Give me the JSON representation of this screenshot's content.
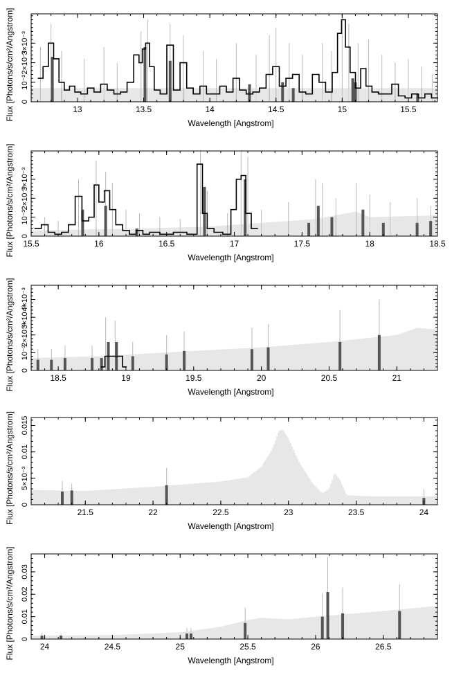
{
  "colors": {
    "data": "#000000",
    "bars": "#555555",
    "errors": "#b8b8b8",
    "model": "#cfcfcf"
  },
  "chart_data": [
    {
      "type": "line",
      "xlabel": "Wavelength [Angstrom]",
      "ylabel": "Flux [Photons/s/cm²/Angstrom]",
      "xlim": [
        12.65,
        15.72
      ],
      "ylim": [
        0,
        0.0045
      ],
      "xticks": [
        13,
        13.5,
        14,
        14.5,
        15,
        15.5
      ],
      "xtick_labels": [
        "13",
        "13.5",
        "14",
        "14.5",
        "15",
        "15.5"
      ],
      "yticks": [
        0,
        0.001,
        0.002,
        0.003
      ],
      "ytick_labels": [
        "0",
        "10⁻³",
        "2×10⁻³",
        "3×10⁻³"
      ],
      "model_level": [
        [
          12.65,
          0.0007
        ],
        [
          15.72,
          0.0007
        ]
      ],
      "x": [
        12.72,
        12.76,
        12.8,
        12.84,
        12.88,
        12.92,
        12.96,
        13.0,
        13.05,
        13.1,
        13.15,
        13.2,
        13.25,
        13.3,
        13.35,
        13.4,
        13.45,
        13.48,
        13.5,
        13.53,
        13.56,
        13.6,
        13.65,
        13.7,
        13.75,
        13.8,
        13.85,
        13.9,
        13.95,
        14.0,
        14.05,
        14.1,
        14.15,
        14.2,
        14.25,
        14.3,
        14.35,
        14.4,
        14.45,
        14.5,
        14.55,
        14.6,
        14.65,
        14.7,
        14.75,
        14.8,
        14.85,
        14.9,
        14.95,
        14.98,
        15.01,
        15.04,
        15.08,
        15.12,
        15.16,
        15.2,
        15.25,
        15.3,
        15.35,
        15.4,
        15.45,
        15.5,
        15.55,
        15.6,
        15.65,
        15.7
      ],
      "y": [
        0.0012,
        0.0018,
        0.003,
        0.0022,
        0.001,
        0.0006,
        0.0008,
        0.0005,
        0.0004,
        0.0007,
        0.0005,
        0.0009,
        0.0006,
        0.0004,
        0.0005,
        0.001,
        0.0024,
        0.002,
        0.0027,
        0.003,
        0.0018,
        0.0006,
        0.0004,
        0.0029,
        0.0006,
        0.002,
        0.0007,
        0.0004,
        0.0008,
        0.0004,
        0.0004,
        0.0008,
        0.0005,
        0.0012,
        0.0006,
        0.0004,
        0.0005,
        0.0007,
        0.0014,
        0.0018,
        0.0008,
        0.0012,
        0.0014,
        0.0005,
        0.0004,
        0.0014,
        0.001,
        0.0005,
        0.0015,
        0.0035,
        0.0042,
        0.0028,
        0.0015,
        0.0007,
        0.0017,
        0.0008,
        0.0005,
        0.0004,
        0.0004,
        0.0009,
        0.0003,
        0.0002,
        0.0004,
        0.0002,
        0.0004,
        0.0002
      ],
      "bars": [
        [
          12.81,
          0.0023
        ],
        [
          13.51,
          0.0028
        ],
        [
          13.7,
          0.0021
        ],
        [
          14.3,
          0.0009
        ],
        [
          14.55,
          0.001
        ],
        [
          14.63,
          0.0007
        ],
        [
          15.08,
          0.0012
        ],
        [
          15.1,
          0.001
        ],
        [
          15.57,
          0.0004
        ]
      ],
      "errors": [
        [
          12.72,
          0.0028
        ],
        [
          12.8,
          0.004
        ],
        [
          12.88,
          0.0026
        ],
        [
          13.05,
          0.0022
        ],
        [
          13.2,
          0.0028
        ],
        [
          13.3,
          0.002
        ],
        [
          13.48,
          0.0036
        ],
        [
          13.53,
          0.0042
        ],
        [
          13.7,
          0.004
        ],
        [
          13.8,
          0.0034
        ],
        [
          13.95,
          0.0026
        ],
        [
          14.05,
          0.0022
        ],
        [
          14.2,
          0.003
        ],
        [
          14.35,
          0.0024
        ],
        [
          14.45,
          0.0034
        ],
        [
          14.5,
          0.0038
        ],
        [
          14.6,
          0.003
        ],
        [
          14.7,
          0.0024
        ],
        [
          14.85,
          0.003
        ],
        [
          14.92,
          0.0026
        ],
        [
          15.0,
          0.0048
        ],
        [
          15.05,
          0.004
        ],
        [
          15.12,
          0.003
        ],
        [
          15.2,
          0.0032
        ],
        [
          15.3,
          0.0024
        ],
        [
          15.4,
          0.002
        ],
        [
          15.5,
          0.0022
        ],
        [
          15.6,
          0.0018
        ],
        [
          15.68,
          0.0014
        ]
      ]
    },
    {
      "type": "line",
      "xlabel": "Wavelength [Angstrom]",
      "ylabel": "Flux [Photons/s/cm²/Angstrom]",
      "xlim": [
        15.5,
        18.5
      ],
      "ylim": [
        0,
        0.0045
      ],
      "xticks": [
        15.5,
        16,
        16.5,
        17,
        17.5,
        18,
        18.5
      ],
      "xtick_labels": [
        "15.5",
        "16",
        "16.5",
        "17",
        "17.5",
        "18",
        "18.5"
      ],
      "yticks": [
        0,
        0.001,
        0.002,
        0.003
      ],
      "ytick_labels": [
        "0",
        "10⁻³",
        "2×10⁻³",
        "3×10⁻³"
      ],
      "model_level": [
        [
          15.5,
          0.0003
        ],
        [
          16.3,
          0.0004
        ],
        [
          16.8,
          0.0005
        ],
        [
          17.2,
          0.0007
        ],
        [
          17.6,
          0.0009
        ],
        [
          17.9,
          0.0013
        ],
        [
          18.0,
          0.001
        ],
        [
          18.5,
          0.0011
        ]
      ],
      "x": [
        15.55,
        15.6,
        15.65,
        15.7,
        15.75,
        15.8,
        15.85,
        15.9,
        15.95,
        15.98,
        16.02,
        16.06,
        16.1,
        16.15,
        16.2,
        16.25,
        16.3,
        16.35,
        16.4,
        16.5,
        16.6,
        16.7,
        16.75,
        16.78,
        16.82,
        16.88,
        16.95,
        17.0,
        17.03,
        17.07,
        17.1,
        17.15
      ],
      "y": [
        0.0004,
        0.0006,
        0.0002,
        0.0001,
        0.0002,
        0.0006,
        0.0021,
        0.0008,
        0.001,
        0.0027,
        0.0018,
        0.0024,
        0.0014,
        0.0006,
        0.0003,
        0.0001,
        0.0003,
        0.0001,
        0.0002,
        0.0001,
        0.0002,
        0.0001,
        0.0038,
        0.0012,
        0.0004,
        0.0002,
        0.0001,
        0.0014,
        0.003,
        0.0032,
        0.0012,
        0.0004
      ],
      "bars": [
        [
          15.88,
          0.0014
        ],
        [
          16.05,
          0.0016
        ],
        [
          16.28,
          0.0004
        ],
        [
          16.78,
          0.0026
        ],
        [
          17.08,
          0.003
        ],
        [
          17.55,
          0.0007
        ],
        [
          17.62,
          0.0016
        ],
        [
          17.72,
          0.001
        ],
        [
          17.95,
          0.0014
        ],
        [
          18.1,
          0.0007
        ],
        [
          18.35,
          0.0007
        ],
        [
          18.45,
          0.0008
        ]
      ],
      "errors": [
        [
          15.6,
          0.001
        ],
        [
          15.7,
          0.0008
        ],
        [
          15.85,
          0.003
        ],
        [
          15.98,
          0.004
        ],
        [
          16.05,
          0.0034
        ],
        [
          16.1,
          0.0028
        ],
        [
          16.2,
          0.0014
        ],
        [
          16.3,
          0.0012
        ],
        [
          16.45,
          0.001
        ],
        [
          16.6,
          0.0009
        ],
        [
          16.75,
          0.005
        ],
        [
          16.8,
          0.0024
        ],
        [
          16.95,
          0.0012
        ],
        [
          17.05,
          0.0048
        ],
        [
          17.1,
          0.0042
        ],
        [
          17.2,
          0.0014
        ],
        [
          17.4,
          0.0018
        ],
        [
          17.6,
          0.003
        ],
        [
          17.65,
          0.0028
        ],
        [
          17.75,
          0.002
        ],
        [
          17.9,
          0.0028
        ],
        [
          18.0,
          0.0022
        ],
        [
          18.15,
          0.0018
        ],
        [
          18.35,
          0.002
        ],
        [
          18.45,
          0.0016
        ]
      ]
    },
    {
      "type": "line",
      "xlabel": "Wavelength [Angstrom]",
      "ylabel": "Flux [Photons/s/cm²/Angstrom]",
      "xlim": [
        18.3,
        21.3
      ],
      "ylim": [
        0,
        0.0048
      ],
      "xticks": [
        18.5,
        19,
        19.5,
        20,
        20.5,
        21
      ],
      "xtick_labels": [
        "18.5",
        "19",
        "19.5",
        "20",
        "20.5",
        "21"
      ],
      "yticks": [
        0,
        0.001,
        0.002,
        0.003,
        0.004
      ],
      "ytick_labels": [
        "0",
        "10⁻³",
        "2×10⁻³",
        "3×10⁻³",
        "4×10⁻³"
      ],
      "model_level": [
        [
          18.3,
          0.0007
        ],
        [
          18.8,
          0.0008
        ],
        [
          19.5,
          0.0011
        ],
        [
          20.0,
          0.0013
        ],
        [
          20.5,
          0.0016
        ],
        [
          21.0,
          0.002
        ],
        [
          21.15,
          0.0024
        ],
        [
          21.3,
          0.0023
        ]
      ],
      "x": [
        18.83,
        18.86,
        18.9,
        18.93,
        18.96,
        18.99
      ],
      "y": [
        0.0002,
        0.0008,
        0.0008,
        0.0008,
        0.0008,
        0.0002
      ],
      "bars": [
        [
          18.35,
          0.0006
        ],
        [
          18.45,
          0.0006
        ],
        [
          18.55,
          0.0007
        ],
        [
          18.75,
          0.0007
        ],
        [
          18.82,
          0.0007
        ],
        [
          18.87,
          0.0016
        ],
        [
          18.93,
          0.0016
        ],
        [
          19.05,
          0.0008
        ],
        [
          19.3,
          0.0009
        ],
        [
          19.43,
          0.0011
        ],
        [
          19.93,
          0.0012
        ],
        [
          20.05,
          0.0013
        ],
        [
          20.58,
          0.0016
        ],
        [
          20.87,
          0.002
        ]
      ],
      "errors": [
        [
          18.35,
          0.0012
        ],
        [
          18.45,
          0.0012
        ],
        [
          18.55,
          0.0014
        ],
        [
          18.75,
          0.0014
        ],
        [
          18.85,
          0.003
        ],
        [
          18.92,
          0.0028
        ],
        [
          19.05,
          0.0016
        ],
        [
          19.3,
          0.002
        ],
        [
          19.43,
          0.0022
        ],
        [
          19.93,
          0.0024
        ],
        [
          20.05,
          0.0026
        ],
        [
          20.58,
          0.0034
        ],
        [
          20.87,
          0.004
        ]
      ]
    },
    {
      "type": "line",
      "xlabel": "Wavelength [Angstrom]",
      "ylabel": "Flux [Photons/s/cm²/Angstrom]",
      "xlim": [
        21.1,
        24.1
      ],
      "ylim": [
        0,
        0.0165
      ],
      "xticks": [
        21.5,
        22,
        22.5,
        23,
        23.5,
        24
      ],
      "xtick_labels": [
        "21.5",
        "22",
        "22.5",
        "23",
        "23.5",
        "24"
      ],
      "yticks": [
        0,
        0.005,
        0.01,
        0.015
      ],
      "ytick_labels": [
        "0",
        "5×10⁻³",
        "0.01",
        "0.015"
      ],
      "model_level": [
        [
          21.1,
          0.0028
        ],
        [
          21.5,
          0.0026
        ],
        [
          22.0,
          0.0034
        ],
        [
          22.5,
          0.0044
        ],
        [
          22.7,
          0.0052
        ],
        [
          22.8,
          0.0072
        ],
        [
          22.88,
          0.0105
        ],
        [
          22.93,
          0.014
        ],
        [
          22.96,
          0.0142
        ],
        [
          23.0,
          0.0125
        ],
        [
          23.08,
          0.008
        ],
        [
          23.18,
          0.004
        ],
        [
          23.25,
          0.0022
        ],
        [
          23.3,
          0.003
        ],
        [
          23.34,
          0.006
        ],
        [
          23.38,
          0.0048
        ],
        [
          23.43,
          0.0018
        ],
        [
          23.6,
          0.0016
        ],
        [
          24.1,
          0.0016
        ]
      ],
      "x": [],
      "y": [],
      "bars": [
        [
          21.33,
          0.0025
        ],
        [
          21.4,
          0.0027
        ],
        [
          22.1,
          0.0037
        ],
        [
          24.0,
          0.0013
        ]
      ],
      "errors": [
        [
          21.33,
          0.0045
        ],
        [
          21.4,
          0.004
        ],
        [
          22.1,
          0.007
        ],
        [
          24.0,
          0.003
        ]
      ]
    },
    {
      "type": "line",
      "xlabel": "Wavelength [Angstrom]",
      "ylabel": "Flux [Photons/s/cm²/Angstrom]",
      "xlim": [
        23.9,
        26.9
      ],
      "ylim": [
        0,
        0.038
      ],
      "xticks": [
        24,
        24.5,
        25,
        25.5,
        26,
        26.5
      ],
      "xtick_labels": [
        "24",
        "24.5",
        "25",
        "25.5",
        "26",
        "26.5"
      ],
      "yticks": [
        0,
        0.01,
        0.02,
        0.03
      ],
      "ytick_labels": [
        "0",
        "0.01",
        "0.02",
        "0.03"
      ],
      "model_level": [
        [
          23.9,
          0.0015
        ],
        [
          24.5,
          0.0018
        ],
        [
          25.0,
          0.003
        ],
        [
          25.3,
          0.0055
        ],
        [
          25.5,
          0.0085
        ],
        [
          25.6,
          0.0095
        ],
        [
          25.8,
          0.0088
        ],
        [
          26.0,
          0.01
        ],
        [
          26.3,
          0.0115
        ],
        [
          26.5,
          0.0125
        ],
        [
          26.9,
          0.0148
        ]
      ],
      "x": [],
      "y": [],
      "bars": [
        [
          23.98,
          0.0015
        ],
        [
          24.12,
          0.0015
        ],
        [
          25.05,
          0.0025
        ],
        [
          25.08,
          0.0025
        ],
        [
          25.48,
          0.0072
        ],
        [
          26.05,
          0.01
        ],
        [
          26.09,
          0.021
        ],
        [
          26.2,
          0.0115
        ],
        [
          26.62,
          0.0125
        ]
      ],
      "errors": [
        [
          23.98,
          0.0028
        ],
        [
          24.12,
          0.0025
        ],
        [
          25.05,
          0.005
        ],
        [
          25.08,
          0.005
        ],
        [
          25.48,
          0.014
        ],
        [
          26.05,
          0.0205
        ],
        [
          26.09,
          0.0365
        ],
        [
          26.2,
          0.023
        ],
        [
          26.62,
          0.0245
        ]
      ]
    }
  ]
}
